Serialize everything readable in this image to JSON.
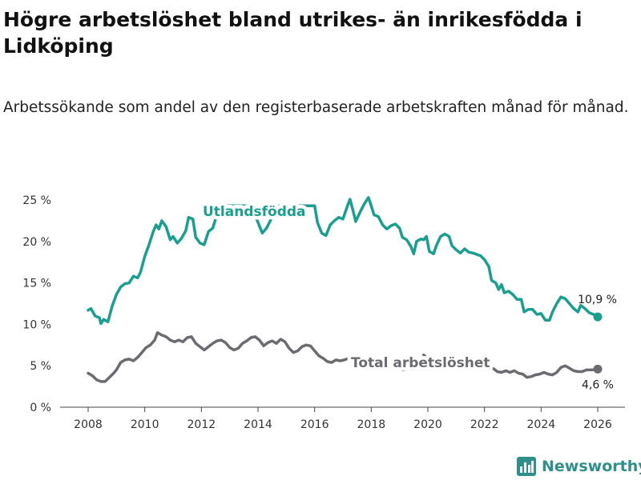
{
  "title": "Högre arbetslöshet bland utrikes- än inrikesfödda i Lidköping",
  "subtitle": "Arbetssökande som andel av den registerbaserade arbetskraften månad för månad.",
  "brand": {
    "name": "Newsworthy",
    "icon": "newsworthy-logo-icon",
    "color": "#2f8f8a"
  },
  "chart_data": {
    "type": "line",
    "title": "Högre arbetslöshet bland utrikes- än inrikesfödda i Lidköping",
    "xlabel": "",
    "ylabel": "",
    "xlim": [
      2007.5,
      2026.5
    ],
    "ylim": [
      0,
      25
    ],
    "grid": false,
    "x_ticks": [
      2008,
      2010,
      2012,
      2014,
      2016,
      2018,
      2020,
      2022,
      2024,
      2026
    ],
    "x_tick_labels": [
      "2008",
      "2010",
      "2012",
      "2014",
      "2016",
      "2018",
      "2020",
      "2022",
      "2024",
      "2026"
    ],
    "y_ticks": [
      0,
      5,
      10,
      15,
      20,
      25
    ],
    "y_tick_labels": [
      "0 %",
      "5 %",
      "10 %",
      "15 %",
      "20 %",
      "25 %"
    ],
    "series": [
      {
        "name": "Utlandsfödda",
        "label": "Utlandsfödda",
        "color": "#1a9e8f",
        "end_label": "10,9 %",
        "points": [
          [
            2008.0,
            11.7
          ],
          [
            2008.1,
            11.9
          ],
          [
            2008.25,
            11.0
          ],
          [
            2008.4,
            10.8
          ],
          [
            2008.45,
            10.1
          ],
          [
            2008.55,
            10.6
          ],
          [
            2008.7,
            10.3
          ],
          [
            2008.85,
            12.2
          ],
          [
            2009.0,
            13.6
          ],
          [
            2009.15,
            14.5
          ],
          [
            2009.3,
            14.9
          ],
          [
            2009.45,
            15.0
          ],
          [
            2009.6,
            15.8
          ],
          [
            2009.75,
            15.6
          ],
          [
            2009.85,
            16.3
          ],
          [
            2010.0,
            18.2
          ],
          [
            2010.15,
            19.6
          ],
          [
            2010.3,
            21.2
          ],
          [
            2010.4,
            22.0
          ],
          [
            2010.5,
            21.5
          ],
          [
            2010.6,
            22.5
          ],
          [
            2010.75,
            21.8
          ],
          [
            2010.9,
            20.2
          ],
          [
            2011.0,
            20.6
          ],
          [
            2011.15,
            19.8
          ],
          [
            2011.3,
            20.4
          ],
          [
            2011.45,
            21.3
          ],
          [
            2011.55,
            22.9
          ],
          [
            2011.7,
            22.7
          ],
          [
            2011.8,
            20.5
          ],
          [
            2011.95,
            19.8
          ],
          [
            2012.1,
            19.6
          ],
          [
            2012.25,
            21.2
          ],
          [
            2012.4,
            21.6
          ],
          [
            2012.55,
            23.2
          ],
          [
            2012.7,
            24.3
          ],
          [
            2013.7,
            24.3
          ],
          [
            2013.85,
            23.5
          ],
          [
            2014.0,
            22.3
          ],
          [
            2014.15,
            21.0
          ],
          [
            2014.3,
            21.6
          ],
          [
            2014.45,
            22.6
          ],
          [
            2014.6,
            23.5
          ],
          [
            2014.75,
            24.3
          ],
          [
            2016.0,
            24.3
          ],
          [
            2016.1,
            22.3
          ],
          [
            2016.25,
            21.0
          ],
          [
            2016.4,
            20.7
          ],
          [
            2016.55,
            22.0
          ],
          [
            2016.7,
            22.5
          ],
          [
            2016.85,
            22.9
          ],
          [
            2017.0,
            22.7
          ],
          [
            2017.15,
            24.2
          ],
          [
            2017.25,
            25.1
          ],
          [
            2017.35,
            23.8
          ],
          [
            2017.45,
            22.4
          ],
          [
            2017.6,
            23.5
          ],
          [
            2017.75,
            24.5
          ],
          [
            2017.9,
            25.3
          ],
          [
            2017.95,
            24.8
          ],
          [
            2018.1,
            23.2
          ],
          [
            2018.25,
            23.0
          ],
          [
            2018.4,
            22.0
          ],
          [
            2018.55,
            21.5
          ],
          [
            2018.7,
            21.9
          ],
          [
            2018.85,
            22.1
          ],
          [
            2019.0,
            21.6
          ],
          [
            2019.1,
            20.5
          ],
          [
            2019.25,
            20.2
          ],
          [
            2019.4,
            19.4
          ],
          [
            2019.5,
            18.5
          ],
          [
            2019.6,
            20.0
          ],
          [
            2019.75,
            20.3
          ],
          [
            2019.85,
            20.2
          ],
          [
            2019.95,
            20.6
          ],
          [
            2020.05,
            18.8
          ],
          [
            2020.2,
            18.5
          ],
          [
            2020.3,
            19.5
          ],
          [
            2020.45,
            20.6
          ],
          [
            2020.6,
            20.9
          ],
          [
            2020.75,
            20.6
          ],
          [
            2020.85,
            19.5
          ],
          [
            2021.0,
            19.0
          ],
          [
            2021.15,
            18.6
          ],
          [
            2021.3,
            19.1
          ],
          [
            2021.45,
            18.7
          ],
          [
            2021.6,
            18.6
          ],
          [
            2021.75,
            18.4
          ],
          [
            2021.85,
            18.3
          ],
          [
            2022.0,
            17.8
          ],
          [
            2022.15,
            17.0
          ],
          [
            2022.25,
            15.3
          ],
          [
            2022.4,
            15.0
          ],
          [
            2022.5,
            14.2
          ],
          [
            2022.6,
            14.8
          ],
          [
            2022.7,
            13.8
          ],
          [
            2022.85,
            14.0
          ],
          [
            2023.0,
            13.6
          ],
          [
            2023.15,
            13.0
          ],
          [
            2023.3,
            13.0
          ],
          [
            2023.4,
            11.5
          ],
          [
            2023.55,
            11.8
          ],
          [
            2023.7,
            11.8
          ],
          [
            2023.85,
            11.2
          ],
          [
            2024.0,
            11.3
          ],
          [
            2024.15,
            10.5
          ],
          [
            2024.3,
            10.5
          ],
          [
            2024.4,
            11.5
          ],
          [
            2024.55,
            12.5
          ],
          [
            2024.7,
            13.3
          ],
          [
            2024.85,
            13.1
          ],
          [
            2025.0,
            12.5
          ],
          [
            2025.15,
            11.9
          ],
          [
            2025.3,
            11.5
          ],
          [
            2025.4,
            12.3
          ],
          [
            2025.55,
            11.9
          ],
          [
            2025.7,
            11.4
          ],
          [
            2025.85,
            11.2
          ],
          [
            2026.0,
            10.9
          ]
        ]
      },
      {
        "name": "Total arbetslöshet",
        "label": "Total arbetslöshet",
        "color": "#6b6b72",
        "end_label": "4,6 %",
        "points": [
          [
            2008.0,
            4.1
          ],
          [
            2008.15,
            3.8
          ],
          [
            2008.3,
            3.3
          ],
          [
            2008.45,
            3.1
          ],
          [
            2008.6,
            3.1
          ],
          [
            2008.75,
            3.6
          ],
          [
            2008.9,
            4.1
          ],
          [
            2009.0,
            4.5
          ],
          [
            2009.15,
            5.4
          ],
          [
            2009.3,
            5.7
          ],
          [
            2009.45,
            5.8
          ],
          [
            2009.6,
            5.6
          ],
          [
            2009.75,
            6.0
          ],
          [
            2009.9,
            6.6
          ],
          [
            2010.05,
            7.2
          ],
          [
            2010.2,
            7.5
          ],
          [
            2010.35,
            8.1
          ],
          [
            2010.45,
            9.0
          ],
          [
            2010.6,
            8.7
          ],
          [
            2010.75,
            8.5
          ],
          [
            2010.9,
            8.1
          ],
          [
            2011.05,
            7.9
          ],
          [
            2011.2,
            8.1
          ],
          [
            2011.35,
            7.9
          ],
          [
            2011.5,
            8.4
          ],
          [
            2011.65,
            8.5
          ],
          [
            2011.8,
            7.7
          ],
          [
            2011.95,
            7.3
          ],
          [
            2012.1,
            6.9
          ],
          [
            2012.25,
            7.3
          ],
          [
            2012.4,
            7.7
          ],
          [
            2012.55,
            8.0
          ],
          [
            2012.7,
            8.1
          ],
          [
            2012.85,
            7.8
          ],
          [
            2013.0,
            7.2
          ],
          [
            2013.15,
            6.9
          ],
          [
            2013.3,
            7.1
          ],
          [
            2013.45,
            7.7
          ],
          [
            2013.6,
            8.0
          ],
          [
            2013.75,
            8.4
          ],
          [
            2013.9,
            8.5
          ],
          [
            2014.05,
            8.1
          ],
          [
            2014.2,
            7.4
          ],
          [
            2014.35,
            7.8
          ],
          [
            2014.5,
            8.0
          ],
          [
            2014.65,
            7.7
          ],
          [
            2014.8,
            8.2
          ],
          [
            2014.95,
            7.9
          ],
          [
            2015.1,
            7.1
          ],
          [
            2015.25,
            6.6
          ],
          [
            2015.4,
            6.8
          ],
          [
            2015.55,
            7.3
          ],
          [
            2015.7,
            7.5
          ],
          [
            2015.85,
            7.4
          ],
          [
            2016.0,
            6.8
          ],
          [
            2016.15,
            6.2
          ],
          [
            2016.3,
            5.9
          ],
          [
            2016.45,
            5.5
          ],
          [
            2016.6,
            5.4
          ],
          [
            2016.75,
            5.7
          ],
          [
            2016.9,
            5.6
          ],
          [
            2017.05,
            5.7
          ],
          [
            2017.2,
            5.9
          ],
          [
            2017.35,
            5.6
          ]
        ],
        "segments": [
          [
            [
              2018.1,
              4.8
            ],
            [
              2018.25,
              4.6
            ],
            [
              2018.4,
              4.7
            ]
          ],
          [
            [
              2019.0,
              4.6
            ],
            [
              2019.15,
              4.5
            ]
          ],
          [
            [
              2019.85,
              6.3
            ],
            [
              2019.95,
              6.0
            ]
          ],
          [
            [
              2022.3,
              4.7
            ],
            [
              2022.45,
              4.3
            ],
            [
              2022.6,
              4.2
            ],
            [
              2022.75,
              4.4
            ],
            [
              2022.9,
              4.2
            ],
            [
              2023.05,
              4.4
            ],
            [
              2023.2,
              4.1
            ],
            [
              2023.35,
              4.0
            ],
            [
              2023.5,
              3.6
            ],
            [
              2023.65,
              3.7
            ],
            [
              2023.8,
              3.9
            ],
            [
              2023.95,
              4.0
            ],
            [
              2024.1,
              4.2
            ],
            [
              2024.25,
              4.0
            ],
            [
              2024.4,
              3.9
            ],
            [
              2024.55,
              4.2
            ],
            [
              2024.7,
              4.8
            ],
            [
              2024.85,
              5.0
            ],
            [
              2025.0,
              4.7
            ],
            [
              2025.15,
              4.4
            ],
            [
              2025.3,
              4.3
            ],
            [
              2025.45,
              4.3
            ],
            [
              2025.6,
              4.5
            ],
            [
              2025.8,
              4.5
            ],
            [
              2026.0,
              4.6
            ]
          ]
        ]
      }
    ]
  }
}
